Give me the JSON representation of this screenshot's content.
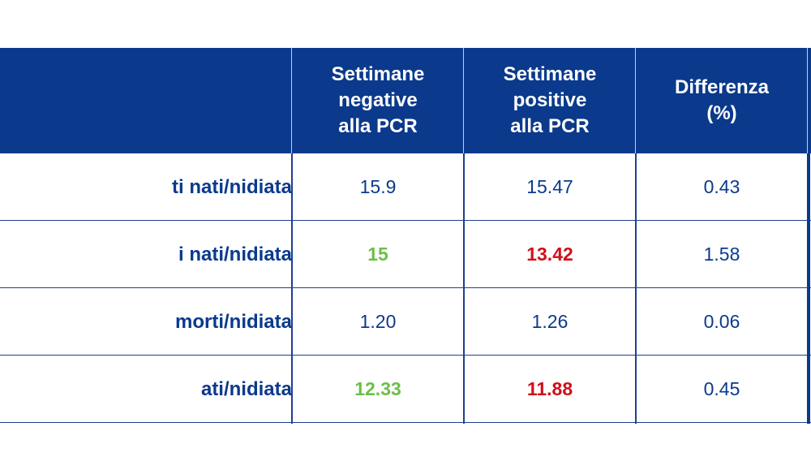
{
  "header": {
    "col1": "Settimane\nnegative\nalla PCR",
    "col2": "Settimane\npositive\nalla PCR",
    "col3": "Differenza\n(%)"
  },
  "rows": [
    {
      "label": "ti nati/nidiata",
      "neg": "15.9",
      "pos": "15.47",
      "diff": "0.43"
    },
    {
      "label": "i nati/nidiata",
      "neg": "15",
      "pos": "13.42",
      "diff": "1.58"
    },
    {
      "label": "morti/nidiata",
      "neg": "1.20",
      "pos": "1.26",
      "diff": "0.06"
    },
    {
      "label": "ati/nidiata",
      "neg": "12.33",
      "pos": "11.88",
      "diff": "0.45"
    }
  ],
  "colors": {
    "header_bg": "#0b3a8c",
    "text_blue": "#0b3a8c",
    "good_green": "#6cbf46",
    "bad_red": "#d10f1b"
  }
}
